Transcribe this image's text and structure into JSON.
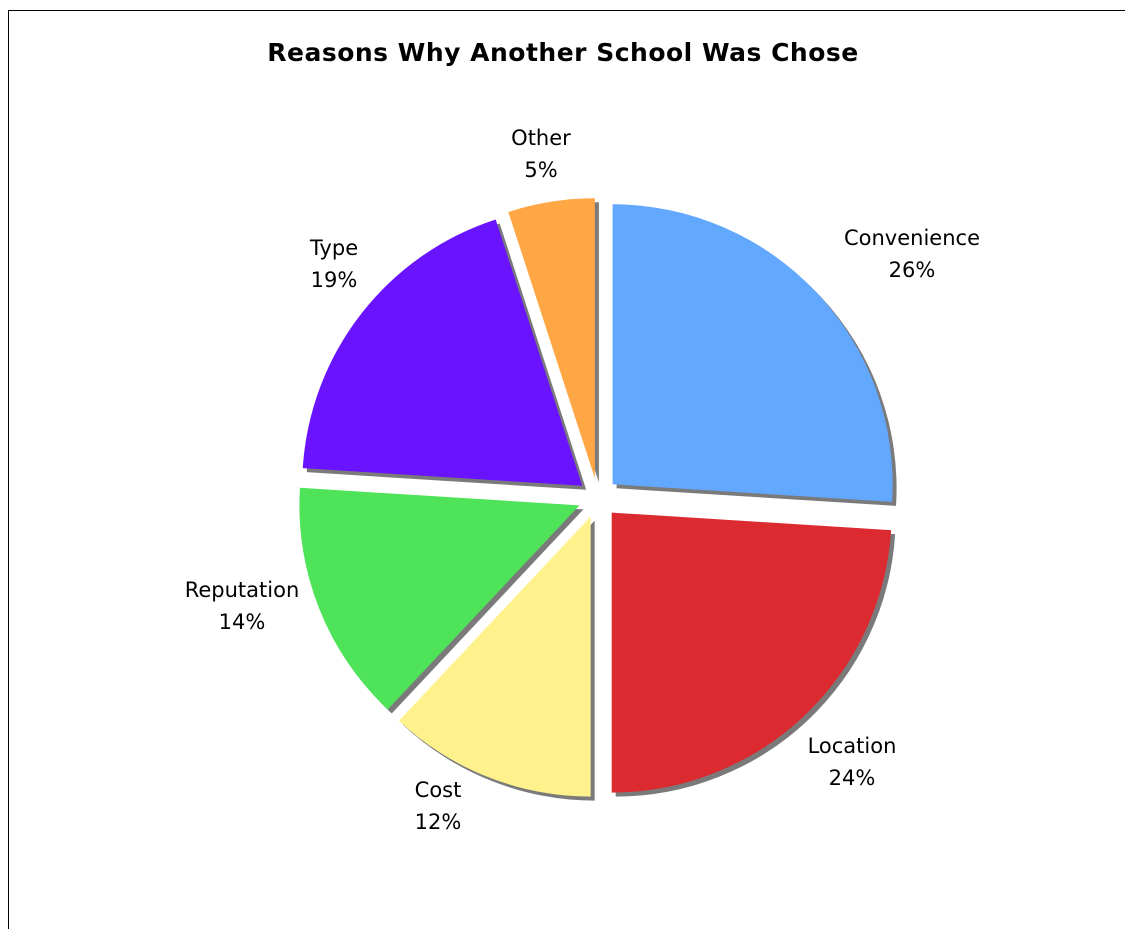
{
  "chart_data": {
    "type": "pie",
    "title": "Reasons Why Another School Was Chose",
    "slices": [
      {
        "label": "Convenience",
        "value": 26,
        "pct_label": "26%",
        "color": "#63a8ff"
      },
      {
        "label": "Location",
        "value": 24,
        "pct_label": "24%",
        "color": "#db2b31"
      },
      {
        "label": "Cost",
        "value": 12,
        "pct_label": "12%",
        "color": "#fff28c"
      },
      {
        "label": "Reputation",
        "value": 14,
        "pct_label": "14%",
        "color": "#4fe359"
      },
      {
        "label": "Type",
        "value": 19,
        "pct_label": "19%",
        "color": "#6913ff"
      },
      {
        "label": "Other",
        "value": 5,
        "pct_label": "5%",
        "color": "#ffa745"
      }
    ],
    "exploded": true,
    "shadow": true,
    "legend": "none"
  }
}
